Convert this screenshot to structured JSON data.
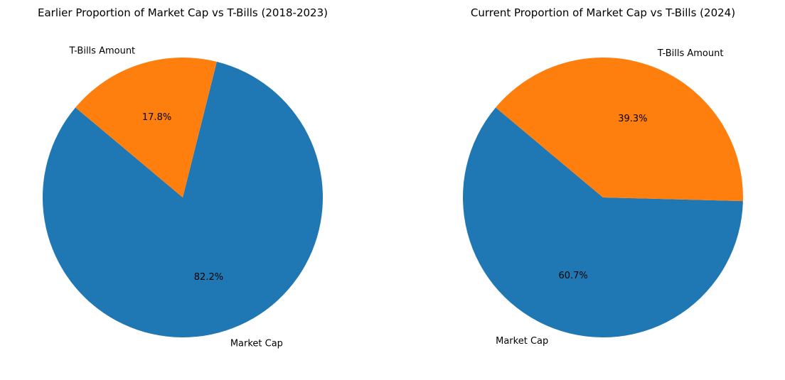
{
  "chart_data": [
    {
      "type": "pie",
      "title": "Earlier Proportion of Market Cap vs T-Bills (2018-2023)",
      "labels": [
        "Market Cap",
        "T-Bills Amount"
      ],
      "values": [
        82.2,
        17.8
      ],
      "value_labels": [
        "82.2%",
        "17.8%"
      ],
      "colors": [
        "#1f77b4",
        "#ff7f0e"
      ],
      "legend": "none"
    },
    {
      "type": "pie",
      "title": "Current Proportion of Market Cap vs T-Bills (2024)",
      "labels": [
        "Market Cap",
        "T-Bills Amount"
      ],
      "values": [
        60.7,
        39.3
      ],
      "value_labels": [
        "60.7%",
        "39.3%"
      ],
      "colors": [
        "#1f77b4",
        "#ff7f0e"
      ],
      "legend": "none"
    }
  ]
}
